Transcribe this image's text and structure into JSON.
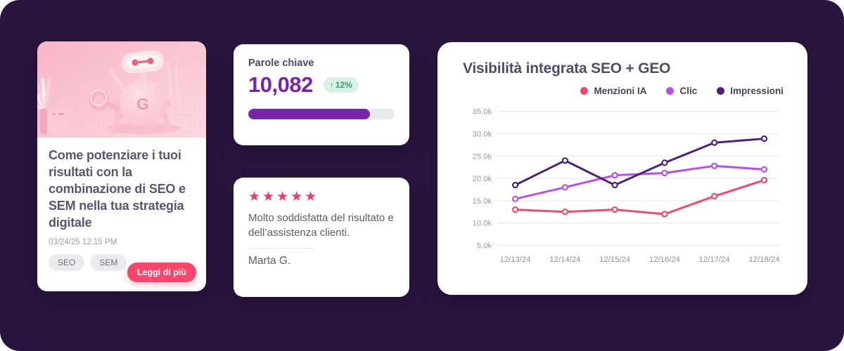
{
  "theme": {
    "background": "#2a153f",
    "card_background": "#ffffff",
    "accent_pink": "#f8456b",
    "accent_purple": "#7a23ab",
    "positive_green": "#2aa36b"
  },
  "blog_card": {
    "title": "Come potenziare i tuoi risultati con la combinazione di SEO e SEM nella tua strategia digitale",
    "timestamp": "03/24/25 12:15 PM",
    "tags": [
      "SEO",
      "SEM"
    ],
    "read_more_label": "Leggi di più",
    "illustration": "pink-3d-robot-with-key-and-book",
    "illustration_letter": "G"
  },
  "keywords_card": {
    "label": "Parole chiave",
    "value": "10,082",
    "trend": {
      "arrow": "↑",
      "text": "12%",
      "color": "#2aa36b",
      "background": "#d9f1e4"
    },
    "progress_percent": 83,
    "progress_color": "#7a23ab",
    "value_color": "#7a23ab"
  },
  "review_card": {
    "rating": 5,
    "star_glyph": "★",
    "star_color": "#f0386b",
    "text": "Molto soddisfatta del risultato e dell’assistenza clienti.",
    "author": "Marta G."
  },
  "chart_data": {
    "type": "line",
    "title": "Visibilità integrata SEO + GEO",
    "x": [
      "12/13/24",
      "12/14/24",
      "12/15/24",
      "12/16/24",
      "12/17/24",
      "12/18/24"
    ],
    "series": [
      {
        "name": "Menzioni IA",
        "color": "#f8456b",
        "values": [
          13000,
          12500,
          13000,
          12000,
          16000,
          19600
        ]
      },
      {
        "name": "Clic",
        "color": "#bb4cf4",
        "values": [
          15400,
          18000,
          20700,
          21200,
          22800,
          22000
        ]
      },
      {
        "name": "Impressioni",
        "color": "#4e1e78",
        "values": [
          18500,
          24000,
          18500,
          23500,
          28000,
          28900
        ]
      }
    ],
    "ylim": [
      5000,
      35000
    ],
    "yticks": [
      35000,
      30000,
      25000,
      20000,
      15000,
      10000,
      5000
    ],
    "ytick_labels": [
      "35.0k",
      "30.0k",
      "25.0k",
      "20.0k",
      "15.0k",
      "10.0k",
      "5.0k"
    ],
    "grid": true,
    "legend_position": "top-right"
  }
}
